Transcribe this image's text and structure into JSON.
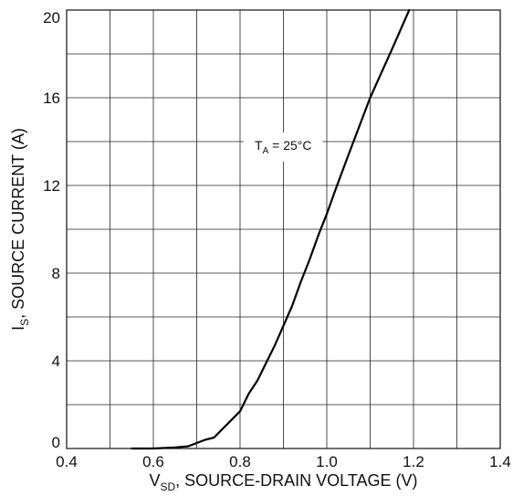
{
  "chart_data": {
    "type": "line",
    "xlabel_main": "V",
    "xlabel_sub": "SD",
    "xlabel_rest": ", SOURCE-DRAIN VOLTAGE (V)",
    "ylabel_main": "I",
    "ylabel_sub": "S",
    "ylabel_rest": ", SOURCE CURRENT (A)",
    "xlim": [
      0.4,
      1.4
    ],
    "ylim": [
      0,
      20
    ],
    "x_ticks": [
      0.4,
      0.6,
      0.8,
      1.0,
      1.2,
      1.4
    ],
    "x_tick_labels": [
      "0.4",
      "0.6",
      "0.8",
      "1.0",
      "1.2",
      "1.4"
    ],
    "y_ticks": [
      0,
      4,
      8,
      12,
      16,
      20
    ],
    "y_tick_labels": [
      "0",
      "4",
      "8",
      "12",
      "16",
      "20"
    ],
    "grid": true,
    "annotation": {
      "main": "T",
      "sub": "A",
      "rest": " = 25°C"
    },
    "series": [
      {
        "color": "#000000",
        "x": [
          0.55,
          0.6,
          0.65,
          0.68,
          0.7,
          0.72,
          0.74,
          0.76,
          0.78,
          0.8,
          0.82,
          0.84,
          0.86,
          0.88,
          0.9,
          0.92,
          0.94,
          0.96,
          0.98,
          1.0,
          1.02,
          1.05,
          1.1,
          1.15,
          1.19
        ],
        "y": [
          0,
          0,
          0.05,
          0.1,
          0.25,
          0.4,
          0.5,
          0.9,
          1.3,
          1.7,
          2.5,
          3.1,
          3.9,
          4.7,
          5.6,
          6.5,
          7.6,
          8.6,
          9.7,
          10.7,
          11.8,
          13.4,
          16.0,
          18.2,
          20.0
        ]
      }
    ]
  }
}
